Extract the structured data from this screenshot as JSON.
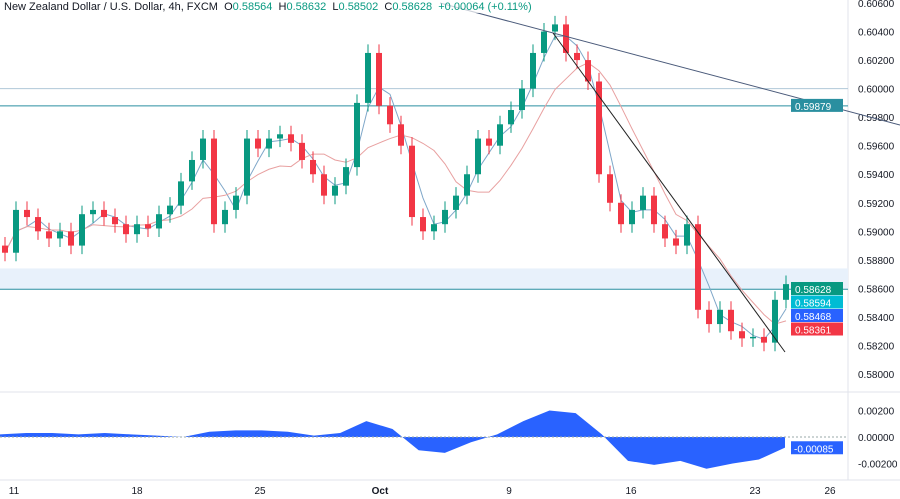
{
  "header": {
    "symbol": "New Zealand Dollar / U.S. Dollar, 4h, FXCM",
    "open_label": "O",
    "open": "0.58564",
    "high_label": "H",
    "high": "0.58632",
    "low_label": "L",
    "low": "0.58502",
    "close_label": "C",
    "close": "0.58628",
    "change": "+0.00064 (+0.11%)"
  },
  "colors": {
    "up": "#089981",
    "down": "#f23645",
    "ma_fast": "#7fa7c9",
    "ma_slow": "#e8a0a0",
    "osc": "#2962ff",
    "trendline": "#4a5a7a",
    "level": "#2a8fa0"
  },
  "chart_data": [
    {
      "type": "candlestick",
      "ylim": [
        0.5786,
        0.6062
      ],
      "y_ticks": [
        "0.60600",
        "0.60400",
        "0.60200",
        "0.60000",
        "0.59800",
        "0.59600",
        "0.59400",
        "0.59200",
        "0.59000",
        "0.58800",
        "0.58600",
        "0.58400",
        "0.58200",
        "0.58000"
      ],
      "x_ticks": [
        "11",
        "18",
        "25",
        "Oct",
        "9",
        "16",
        "23",
        "26"
      ],
      "closes": [
        0.5885,
        0.5915,
        0.591,
        0.59,
        0.5895,
        0.59,
        0.589,
        0.5912,
        0.5915,
        0.591,
        0.5905,
        0.5898,
        0.5905,
        0.5902,
        0.5912,
        0.5918,
        0.5935,
        0.595,
        0.5965,
        0.5905,
        0.5915,
        0.5925,
        0.5965,
        0.5958,
        0.5965,
        0.5968,
        0.5962,
        0.595,
        0.594,
        0.5925,
        0.5932,
        0.5945,
        0.599,
        0.6025,
        0.5988,
        0.5975,
        0.596,
        0.591,
        0.59,
        0.5905,
        0.5915,
        0.5925,
        0.594,
        0.5965,
        0.596,
        0.5975,
        0.5985,
        0.6,
        0.6025,
        0.604,
        0.6045,
        0.6025,
        0.602,
        0.6005,
        0.594,
        0.592,
        0.5905,
        0.5915,
        0.5925,
        0.5905,
        0.5895,
        0.589,
        0.5905,
        0.5845,
        0.5835,
        0.5845,
        0.583,
        0.5825,
        0.5826,
        0.5822,
        0.5852,
        0.5863
      ],
      "levels": [
        {
          "price": 0.6,
          "label": ""
        },
        {
          "price": 0.59879,
          "label": "0.59879"
        },
        {
          "price": 0.58594,
          "label": "0.58594"
        }
      ],
      "zone": [
        0.58594,
        0.5874
      ],
      "price_tags": [
        {
          "label": "0.58628",
          "price": 0.58628,
          "color": "#089981"
        },
        {
          "label": "0.58594",
          "price": 0.58594,
          "color": "#00bcd4"
        },
        {
          "label": "0.58468",
          "price": 0.58468,
          "color": "#2962ff"
        },
        {
          "label": "0.58361",
          "price": 0.58361,
          "color": "#f23645"
        }
      ]
    },
    {
      "type": "area",
      "ylim": [
        -0.0025,
        0.0025
      ],
      "y_ticks": [
        "0.00200",
        "0.00000",
        "-0.00200"
      ],
      "last_label": "-0.00085",
      "values": [
        0.0002,
        0.0003,
        0.0003,
        0.0002,
        0.0003,
        0.0002,
        0.0001,
        0.0,
        0.0004,
        0.0005,
        0.0005,
        0.0004,
        0.0001,
        0.0003,
        0.0012,
        0.0006,
        -0.001,
        -0.0012,
        -0.0004,
        0.0002,
        0.0012,
        0.002,
        0.0018,
        0.0002,
        -0.0018,
        -0.0021,
        -0.0018,
        -0.0024,
        -0.002,
        -0.0017,
        -0.0008
      ]
    }
  ]
}
